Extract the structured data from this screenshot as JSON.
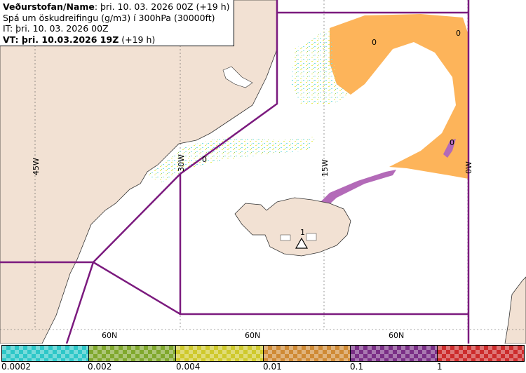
{
  "header": {
    "line1_bold": "Veðurstofan/Name",
    "line1_rest": ": þri. 10. 03. 2026 00Z (+19 h)",
    "line2": "Spá um öskudreifingu (g/m3) í 300hPa (30000ft)",
    "line3": "IT: þri. 10. 03. 2026 00Z",
    "line4_bold": "VT: þri. 10.03.2026 19Z",
    "line4_rest": " (+19 h)"
  },
  "map_labels": {
    "lon_45w": "45W",
    "lon_30w": "30W",
    "lon_15w": "15W",
    "lon_0w": "0W",
    "lat_60n_a": "60N",
    "lat_60n_b": "60N",
    "lat_60n_c": "60N",
    "zero_a": "0",
    "zero_b": "0",
    "zero_c": "0",
    "zero_d": "0",
    "volcano_mark": "1"
  },
  "legend": {
    "labels": [
      "0.0002",
      "0.002",
      "0.004",
      "0.01",
      "0.1",
      "1"
    ],
    "colors": [
      "#2ec7c8",
      "#80a82d",
      "#cfc92c",
      "#cf8a35",
      "#7a2f86",
      "#cc2c2c"
    ]
  },
  "colors": {
    "land": "#f2e1d3",
    "sea": "#ffffff",
    "boundary": "#7b1a7e",
    "ash_orange": "#fdb45a",
    "ash_purple": "#b36ab8",
    "ash_cyan": "#7fe0e4",
    "ash_yellow": "#e9ee63"
  }
}
